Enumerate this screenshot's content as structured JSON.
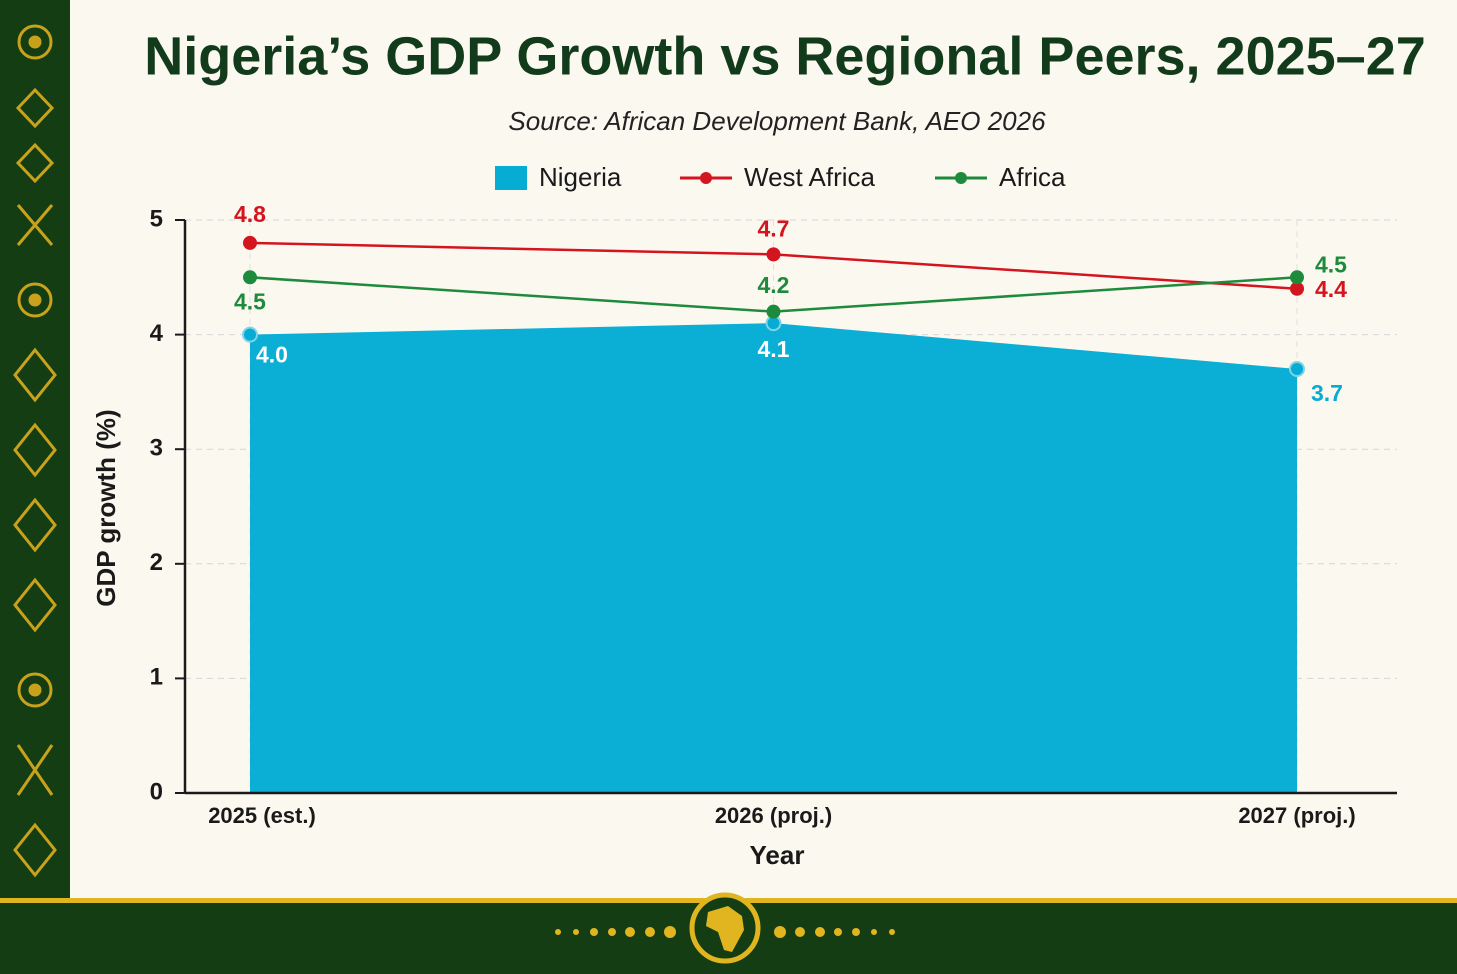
{
  "chart_data": {
    "type": "area-line",
    "title": "Nigeria’s GDP Growth vs Regional Peers, 2025–27",
    "subtitle": "Source: African Development Bank, AEO 2026",
    "x_label": "Year",
    "y_label": "GDP growth (%)",
    "categories": [
      "2025 (est.)",
      "2026 (proj.)",
      "2027 (proj.)"
    ],
    "series": [
      {
        "name": "Nigeria",
        "type": "area",
        "color": "#06acd4",
        "values": [
          4,
          4.1,
          3.7
        ],
        "value_labels": [
          "4.0",
          "4.1",
          "3.7"
        ]
      },
      {
        "name": "West Africa",
        "type": "line",
        "color": "#d4141e",
        "values": [
          4.8,
          4.7,
          4.4
        ]
      },
      {
        "name": "Africa",
        "type": "line",
        "color": "#1e8a3c",
        "values": [
          4.5,
          4.2,
          4.5
        ]
      }
    ],
    "ylim": [
      0,
      5
    ],
    "yticks": [
      0,
      1,
      2,
      3,
      4,
      5
    ],
    "grid": true,
    "legend": "top"
  }
}
